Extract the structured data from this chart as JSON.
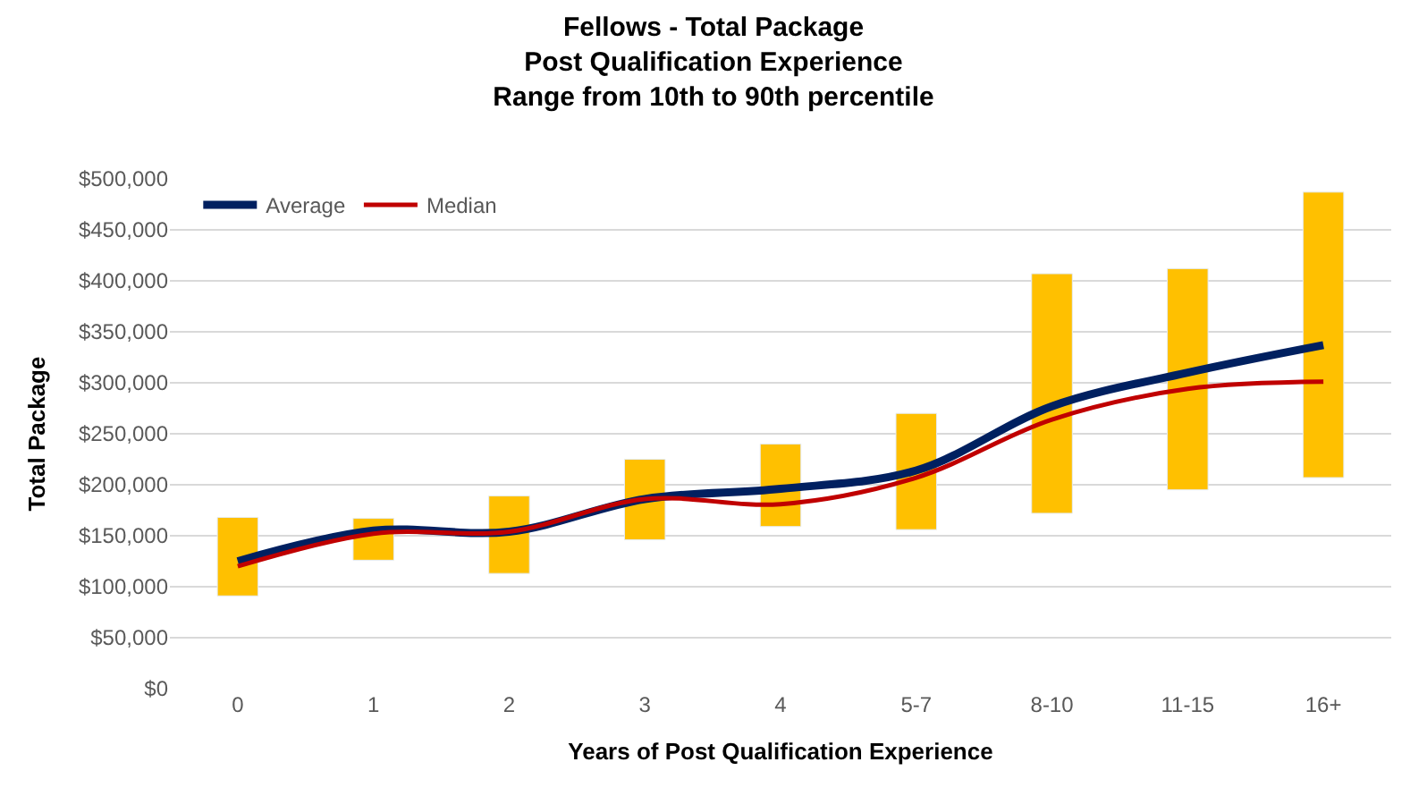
{
  "chart_data": {
    "type": "bar",
    "title": "Fellows - Total Package\nPost Qualification Experience\nRange from 10th to 90th percentile",
    "xlabel": "Years of Post Qualification Experience",
    "ylabel": "Total Package",
    "categories": [
      "0",
      "1",
      "2",
      "3",
      "4",
      "5-7",
      "8-10",
      "11-15",
      "16+"
    ],
    "series": [
      {
        "color": "#ffc000",
        "base": [
          91000,
          126000,
          113000,
          146000,
          159000,
          156000,
          172000,
          195000,
          207000
        ],
        "values": [
          77000,
          41000,
          76000,
          79000,
          81000,
          114000,
          235000,
          217000,
          280000
        ]
      },
      {
        "type": "line",
        "name": "Average",
        "color": "#002060",
        "values": [
          125000,
          155000,
          154000,
          186000,
          196000,
          214000,
          277000,
          310000,
          337000
        ]
      },
      {
        "type": "line",
        "name": "Median",
        "color": "#c00000",
        "values": [
          120000,
          152000,
          154000,
          186000,
          181000,
          207000,
          264000,
          294000,
          301000
        ]
      }
    ],
    "ylim": [
      0,
      500000
    ],
    "yticks": [
      {
        "value": 0,
        "label": "$0"
      },
      {
        "value": 50000,
        "label": "$50,000"
      },
      {
        "value": 100000,
        "label": "$100,000"
      },
      {
        "value": 150000,
        "label": "$150,000"
      },
      {
        "value": 200000,
        "label": "$200,000"
      },
      {
        "value": 250000,
        "label": "$250,000"
      },
      {
        "value": 300000,
        "label": "$300,000"
      },
      {
        "value": 350000,
        "label": "$350,000"
      },
      {
        "value": 400000,
        "label": "$400,000"
      },
      {
        "value": 450000,
        "label": "$450,000"
      },
      {
        "value": 500000,
        "label": "$500,000"
      }
    ],
    "grid": "y",
    "legend": "top left",
    "marker": "none",
    "line_style": "solid"
  }
}
